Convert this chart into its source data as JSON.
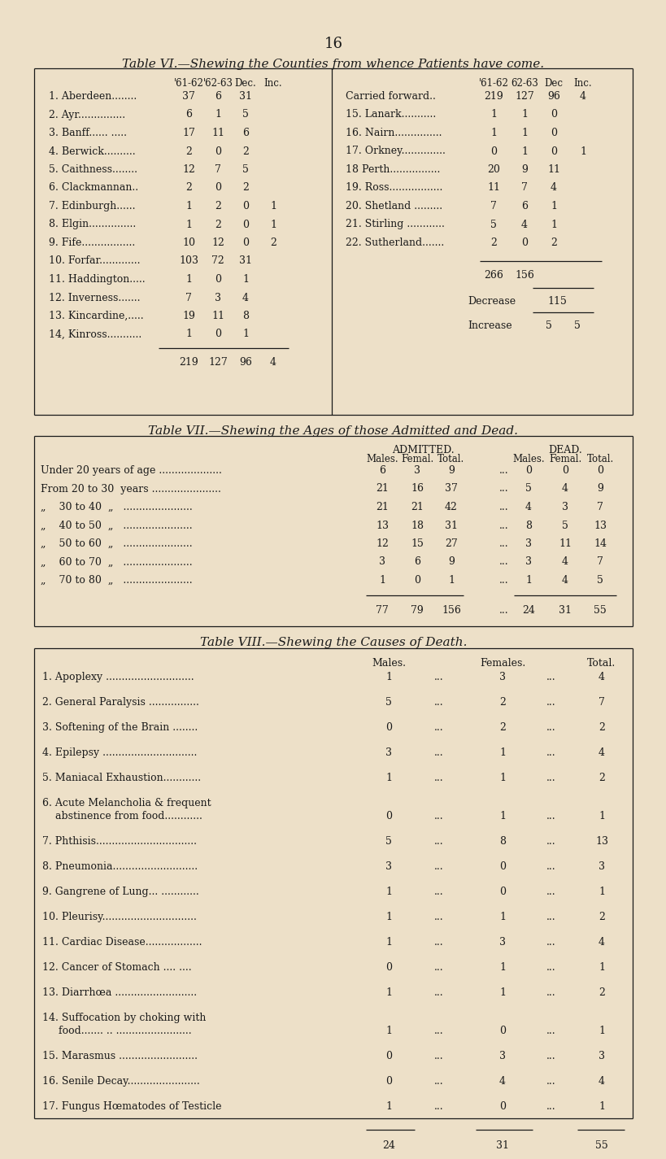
{
  "bg_color": "#ede0c8",
  "text_color": "#1a1a1a",
  "page_number": "16",
  "table6_title": "Table VI.—Shewing the Counties from whence Patients have come.",
  "table7_title": "Table VII.—Shewing the Ages of those Admitted and Dead.",
  "table8_title": "Table VIII.—Shewing the Causes of Death.",
  "t6_header_left": [
    "'61-62",
    "'62-63",
    "Dec.",
    "Inc."
  ],
  "t6_header_right": [
    "'61-62",
    "62-63",
    "Dec",
    "Inc."
  ],
  "t6_left_rows": [
    [
      "1. Aberdeen........",
      "37",
      "6",
      "31",
      ""
    ],
    [
      "2. Ayr...............",
      "6",
      "1",
      "5",
      ""
    ],
    [
      "3. Banff...... .....",
      "17",
      "11",
      "6",
      ""
    ],
    [
      "4. Berwick..........",
      "2",
      "0",
      "2",
      ""
    ],
    [
      "5. Caithness........",
      "12",
      "7",
      "5",
      ""
    ],
    [
      "6. Clackmannan..",
      "2",
      "0",
      "2",
      ""
    ],
    [
      "7. Edinburgh......",
      "1",
      "2",
      "0",
      "1"
    ],
    [
      "8. Elgin...............",
      "1",
      "2",
      "0",
      "1"
    ],
    [
      "9. Fife.................",
      "10",
      "12",
      "0",
      "2"
    ],
    [
      "10. Forfar.............",
      "103",
      "72",
      "31",
      ""
    ],
    [
      "11. Haddington.....",
      "1",
      "0",
      "1",
      ""
    ],
    [
      "12. Inverness.......",
      "7",
      "3",
      "4",
      ""
    ],
    [
      "13. Kincardine,.....",
      "19",
      "11",
      "8",
      ""
    ],
    [
      "14, Kinross...........",
      "1",
      "0",
      "1",
      ""
    ]
  ],
  "t6_left_total": [
    "219",
    "127",
    "96",
    "4"
  ],
  "t6_right_rows": [
    [
      "Carried forward..",
      "219",
      "127",
      "96",
      "4"
    ],
    [
      "15. Lanark...........",
      "1",
      "1",
      "0",
      ""
    ],
    [
      "16. Nairn...............",
      "1",
      "1",
      "0",
      ""
    ],
    [
      "17. Orkney..............",
      "0",
      "1",
      "0",
      "1"
    ],
    [
      "18 Perth................",
      "20",
      "9",
      "11",
      ""
    ],
    [
      "19. Ross.................",
      "11",
      "7",
      "4",
      ""
    ],
    [
      "20. Shetland .........",
      "7",
      "6",
      "1",
      ""
    ],
    [
      "21. Stirling ............",
      "5",
      "4",
      "1",
      ""
    ],
    [
      "22. Sutherland.......",
      "2",
      "0",
      "2",
      ""
    ]
  ],
  "t6_right_subtotal": [
    "266",
    "156"
  ],
  "t6_decrease": "115",
  "t6_increase_vals": [
    "5",
    "5"
  ],
  "t7_adm_cols": [
    "Males.",
    "Femal.",
    "Total."
  ],
  "t7_dead_cols": [
    "Males.",
    "Femal.",
    "Total."
  ],
  "t7_rows": [
    [
      "Under 20 years of age",
      "6",
      "3",
      "9",
      "0",
      "0",
      "0"
    ],
    [
      "From 20 to 30  years",
      "21",
      "16",
      "37",
      "5",
      "4",
      "9"
    ],
    [
      "30 to 40",
      "21",
      "21",
      "42",
      "4",
      "3",
      "7"
    ],
    [
      "40 to 50",
      "13",
      "18",
      "31",
      "8",
      "5",
      "13"
    ],
    [
      "50 to 60",
      "12",
      "15",
      "27",
      "3",
      "11",
      "14"
    ],
    [
      "60 to 70",
      "3",
      "6",
      "9",
      "3",
      "4",
      "7"
    ],
    [
      "70 to 80",
      "1",
      "0",
      "1",
      "1",
      "4",
      "5"
    ]
  ],
  "t7_totals": [
    "77",
    "79",
    "156",
    "24",
    "31",
    "55"
  ],
  "t8_display": [
    [
      "1. Apoplexy ............................",
      "1",
      "3",
      "4",
      false
    ],
    [
      "2. General Paralysis ................",
      "5",
      "2",
      "7",
      false
    ],
    [
      "3. Softening of the Brain ........",
      "0",
      "2",
      "2",
      false
    ],
    [
      "4. Epilepsy ..............................",
      "3",
      "1",
      "4",
      false
    ],
    [
      "5. Maniacal Exhaustion............",
      "1",
      "1",
      "2",
      false
    ],
    [
      "6. Acute Melancholia & frequent",
      "",
      "",
      "",
      true
    ],
    [
      "    abstinence from food............",
      "0",
      "1",
      "1",
      false
    ],
    [
      "7. Phthisis................................",
      "5",
      "8",
      "13",
      false
    ],
    [
      "8. Pneumonia...........................",
      "3",
      "0",
      "3",
      false
    ],
    [
      "9. Gangrene of Lung... ............",
      "1",
      "0",
      "1",
      false
    ],
    [
      "10. Pleurisy..............................",
      "1",
      "1",
      "2",
      false
    ],
    [
      "11. Cardiac Disease..................",
      "1",
      "3",
      "4",
      false
    ],
    [
      "12. Cancer of Stomach .... ....",
      "0",
      "1",
      "1",
      false
    ],
    [
      "13. Diarrhœa ..........................",
      "1",
      "1",
      "2",
      false
    ],
    [
      "14. Suffocation by choking with",
      "",
      "",
      "",
      true
    ],
    [
      "     food....... .. ........................",
      "1",
      "0",
      "1",
      false
    ],
    [
      "15. Marasmus .........................",
      "0",
      "3",
      "3",
      false
    ],
    [
      "16. Senile Decay.......................",
      "0",
      "4",
      "4",
      false
    ],
    [
      "17. Fungus Hœmatodes of Testicle",
      "1",
      "0",
      "1",
      false
    ]
  ],
  "t8_totals": [
    "24",
    "31",
    "55"
  ]
}
